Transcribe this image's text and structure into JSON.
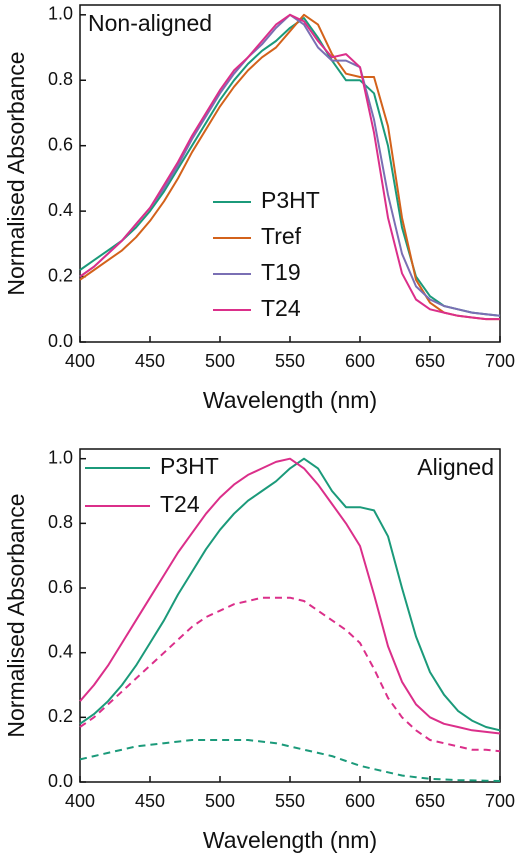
{
  "chart_data": [
    {
      "type": "line",
      "annotation": "Non-aligned",
      "annotation_corner": "upper left",
      "xlabel": "Wavelength (nm)",
      "ylabel": "Normalised Absorbance",
      "xlim": [
        400,
        700
      ],
      "xticks": [
        400,
        450,
        500,
        550,
        600,
        650,
        700
      ],
      "ylim": [
        0,
        1.03
      ],
      "yticks": [
        {
          "value": 0,
          "label": "0.0"
        },
        0.2,
        0.4,
        0.6,
        0.8,
        {
          "value": 1,
          "label": "1.0"
        }
      ],
      "legend": "center",
      "x": [
        400,
        410,
        420,
        430,
        440,
        450,
        460,
        470,
        480,
        490,
        500,
        510,
        520,
        530,
        540,
        550,
        560,
        570,
        580,
        590,
        600,
        610,
        620,
        630,
        640,
        650,
        660,
        670,
        680,
        690,
        700
      ],
      "series": [
        {
          "name": "P3HT",
          "color": "#1b9a7a",
          "values": [
            0.22,
            0.25,
            0.28,
            0.31,
            0.35,
            0.4,
            0.46,
            0.53,
            0.6,
            0.67,
            0.74,
            0.8,
            0.85,
            0.89,
            0.92,
            0.96,
            0.99,
            0.93,
            0.86,
            0.8,
            0.8,
            0.76,
            0.6,
            0.35,
            0.2,
            0.14,
            0.11,
            0.1,
            0.09,
            0.085,
            0.08
          ]
        },
        {
          "name": "Tref",
          "color": "#d3621b",
          "values": [
            0.19,
            0.22,
            0.25,
            0.28,
            0.32,
            0.37,
            0.43,
            0.5,
            0.58,
            0.65,
            0.72,
            0.78,
            0.83,
            0.87,
            0.9,
            0.95,
            1.0,
            0.97,
            0.88,
            0.82,
            0.81,
            0.81,
            0.66,
            0.38,
            0.19,
            0.12,
            0.09,
            0.08,
            0.075,
            0.07,
            0.07
          ]
        },
        {
          "name": "T19",
          "color": "#7a6fb4",
          "values": [
            0.2,
            0.23,
            0.27,
            0.31,
            0.36,
            0.41,
            0.47,
            0.54,
            0.62,
            0.69,
            0.76,
            0.82,
            0.87,
            0.91,
            0.96,
            1.0,
            0.97,
            0.9,
            0.86,
            0.86,
            0.84,
            0.68,
            0.45,
            0.27,
            0.17,
            0.13,
            0.11,
            0.1,
            0.09,
            0.085,
            0.08
          ]
        },
        {
          "name": "T24",
          "color": "#db2f8a",
          "values": [
            0.2,
            0.23,
            0.27,
            0.31,
            0.36,
            0.41,
            0.48,
            0.55,
            0.63,
            0.7,
            0.77,
            0.83,
            0.87,
            0.92,
            0.97,
            1.0,
            0.98,
            0.92,
            0.87,
            0.88,
            0.84,
            0.64,
            0.38,
            0.21,
            0.13,
            0.1,
            0.09,
            0.08,
            0.075,
            0.07,
            0.07
          ]
        }
      ]
    },
    {
      "type": "line",
      "annotation": "Aligned",
      "annotation_corner": "upper right",
      "xlabel": "Wavelength (nm)",
      "ylabel": "Normalised Absorbance",
      "xlim": [
        400,
        700
      ],
      "xticks": [
        400,
        450,
        500,
        550,
        600,
        650,
        700
      ],
      "ylim": [
        0,
        1.03
      ],
      "yticks": [
        {
          "value": 0,
          "label": "0.0"
        },
        0.2,
        0.4,
        0.6,
        0.8,
        {
          "value": 1,
          "label": "1.0"
        }
      ],
      "legend": "upper left",
      "x": [
        400,
        410,
        420,
        430,
        440,
        450,
        460,
        470,
        480,
        490,
        500,
        510,
        520,
        530,
        540,
        550,
        560,
        570,
        580,
        590,
        600,
        610,
        620,
        630,
        640,
        650,
        660,
        670,
        680,
        690,
        700
      ],
      "series": [
        {
          "name": "P3HT",
          "color": "#1b9a7a",
          "values": [
            0.18,
            0.21,
            0.25,
            0.3,
            0.36,
            0.43,
            0.5,
            0.58,
            0.65,
            0.72,
            0.78,
            0.83,
            0.87,
            0.9,
            0.93,
            0.97,
            1.0,
            0.97,
            0.9,
            0.85,
            0.85,
            0.84,
            0.76,
            0.6,
            0.45,
            0.34,
            0.27,
            0.22,
            0.19,
            0.17,
            0.16
          ]
        },
        {
          "name": "T24",
          "color": "#db2f8a",
          "values": [
            0.25,
            0.3,
            0.36,
            0.43,
            0.5,
            0.57,
            0.64,
            0.71,
            0.77,
            0.83,
            0.88,
            0.92,
            0.95,
            0.97,
            0.99,
            1.0,
            0.97,
            0.92,
            0.86,
            0.8,
            0.73,
            0.58,
            0.42,
            0.31,
            0.24,
            0.2,
            0.18,
            0.17,
            0.16,
            0.155,
            0.15
          ]
        },
        {
          "color": "#db2f8a",
          "dashed": true,
          "values": [
            0.17,
            0.2,
            0.24,
            0.28,
            0.32,
            0.36,
            0.4,
            0.44,
            0.48,
            0.51,
            0.53,
            0.55,
            0.56,
            0.57,
            0.57,
            0.57,
            0.56,
            0.53,
            0.5,
            0.47,
            0.43,
            0.35,
            0.26,
            0.2,
            0.16,
            0.13,
            0.12,
            0.11,
            0.1,
            0.1,
            0.095
          ]
        },
        {
          "color": "#1b9a7a",
          "dashed": true,
          "values": [
            0.07,
            0.08,
            0.09,
            0.1,
            0.11,
            0.115,
            0.12,
            0.125,
            0.13,
            0.13,
            0.13,
            0.13,
            0.13,
            0.125,
            0.12,
            0.11,
            0.1,
            0.09,
            0.08,
            0.065,
            0.05,
            0.04,
            0.03,
            0.02,
            0.015,
            0.01,
            0.008,
            0.006,
            0.005,
            0.004,
            0.003
          ]
        }
      ]
    }
  ]
}
